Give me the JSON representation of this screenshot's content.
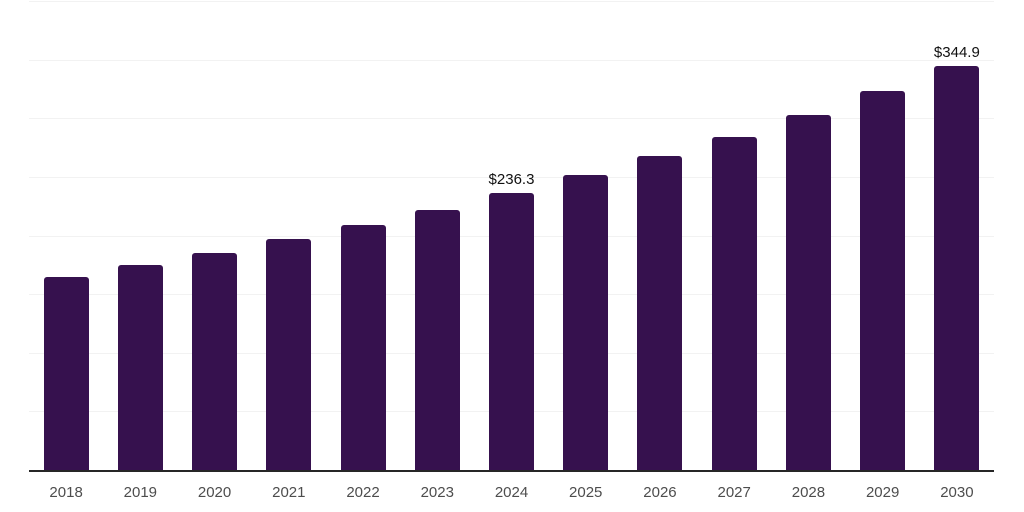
{
  "chart_data": {
    "type": "bar",
    "title": "",
    "xlabel": "",
    "ylabel": "",
    "categories": [
      "2018",
      "2019",
      "2020",
      "2021",
      "2022",
      "2023",
      "2024",
      "2025",
      "2026",
      "2027",
      "2028",
      "2029",
      "2030"
    ],
    "values": [
      164.2,
      175.2,
      185.4,
      197.3,
      209.1,
      221.9,
      236.3,
      251.5,
      267.9,
      284.0,
      302.7,
      323.1,
      344.9
    ],
    "data_labels": [
      "",
      "",
      "",
      "",
      "",
      "",
      "$236.3",
      "",
      "",
      "",
      "",
      "",
      "$344.9"
    ],
    "ylim": [
      0,
      400
    ],
    "gridline_step": 50,
    "grid": true,
    "legend": "none",
    "y_axis_labels_visible": false,
    "colors": {
      "bar": "#36114E",
      "gridline": "#F2F2F2",
      "axis": "#262626",
      "tick_label": "#4D4D4D",
      "data_label": "#111111"
    }
  }
}
